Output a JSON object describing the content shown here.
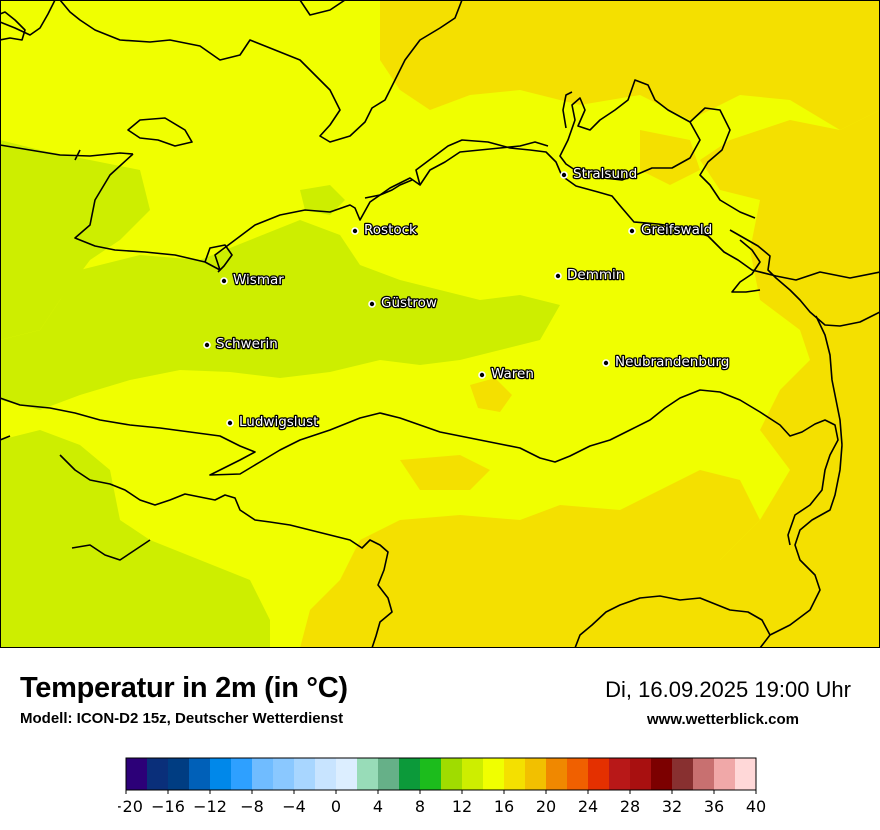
{
  "header": {
    "title": "Temperatur in 2m (in °C)",
    "model": "Modell: ICON-D2 15z, Deutscher Wetterdienst",
    "datetime": "Di, 16.09.2025 19:00 Uhr",
    "website": "www.wetterblick.com"
  },
  "map": {
    "field_colors": {
      "t12_14": "#cdee00",
      "t14_16": "#f0ff00",
      "t16_18": "#f4e000"
    },
    "cities": [
      {
        "name": "Stralsund",
        "lon": 13.09,
        "lat": 54.31
      },
      {
        "name": "Rostock",
        "lon": 12.1,
        "lat": 54.09
      },
      {
        "name": "Greifswald",
        "lon": 13.38,
        "lat": 54.1
      },
      {
        "name": "Wismar",
        "lon": 11.46,
        "lat": 53.89
      },
      {
        "name": "Demmin",
        "lon": 13.04,
        "lat": 53.91
      },
      {
        "name": "Güstrow",
        "lon": 12.17,
        "lat": 53.79
      },
      {
        "name": "Schwerin",
        "lon": 11.41,
        "lat": 53.63
      },
      {
        "name": "Neubrandenburg",
        "lon": 13.26,
        "lat": 53.56
      },
      {
        "name": "Waren",
        "lon": 12.68,
        "lat": 53.52
      },
      {
        "name": "Ludwigslust",
        "lon": 11.5,
        "lat": 53.33
      }
    ]
  },
  "legend": {
    "ticks": [
      "−20",
      "−16",
      "−12",
      "−8",
      "−4",
      "0",
      "4",
      "8",
      "12",
      "16",
      "20",
      "24",
      "28",
      "32",
      "36",
      "40"
    ],
    "colors": [
      "#2c0078",
      "#0a2f7a",
      "#003d82",
      "#0060b8",
      "#0088ea",
      "#2ea0ff",
      "#70bcff",
      "#8ac8ff",
      "#a8d6ff",
      "#c8e4ff",
      "#dceeff",
      "#98dcb8",
      "#66b088",
      "#0c9a3a",
      "#1cbc1c",
      "#a0dc00",
      "#cdee00",
      "#f0ff00",
      "#f4e000",
      "#f2c000",
      "#f08800",
      "#f06000",
      "#e43000",
      "#b81818",
      "#a81010",
      "#7c0000",
      "#883030",
      "#c87070",
      "#f0a8a8",
      "#ffd8d8"
    ]
  }
}
